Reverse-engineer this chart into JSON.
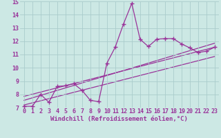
{
  "bg_color": "#cce8e4",
  "grid_color": "#aacccc",
  "line_color": "#993399",
  "marker_style": "+",
  "marker_size": 4,
  "line_width": 0.9,
  "xlim": [
    -0.5,
    23.5
  ],
  "ylim": [
    7,
    15
  ],
  "yticks": [
    7,
    8,
    9,
    10,
    11,
    12,
    13,
    14,
    15
  ],
  "xticks": [
    0,
    1,
    2,
    3,
    4,
    5,
    6,
    7,
    8,
    9,
    10,
    11,
    12,
    13,
    14,
    15,
    16,
    17,
    18,
    19,
    20,
    21,
    22,
    23
  ],
  "xlabel": "Windchill (Refroidissement éolien,°C)",
  "xlabel_fontsize": 6.5,
  "tick_fontsize": 6,
  "series1_x": [
    0,
    1,
    2,
    3,
    4,
    5,
    6,
    7,
    8,
    9,
    10,
    11,
    12,
    13,
    14,
    15,
    16,
    17,
    18,
    19,
    20,
    21,
    22,
    23
  ],
  "series1_y": [
    7.1,
    7.1,
    8.0,
    7.4,
    8.6,
    8.65,
    8.8,
    8.3,
    7.55,
    7.45,
    10.35,
    11.55,
    13.3,
    14.85,
    12.15,
    11.6,
    12.15,
    12.2,
    12.2,
    11.8,
    11.5,
    11.15,
    11.25,
    11.55
  ],
  "series2_x": [
    0,
    23
  ],
  "series2_y": [
    7.55,
    11.85
  ],
  "series3_x": [
    0,
    23
  ],
  "series3_y": [
    7.2,
    10.85
  ],
  "series4_x": [
    0,
    23
  ],
  "series4_y": [
    7.85,
    11.55
  ]
}
